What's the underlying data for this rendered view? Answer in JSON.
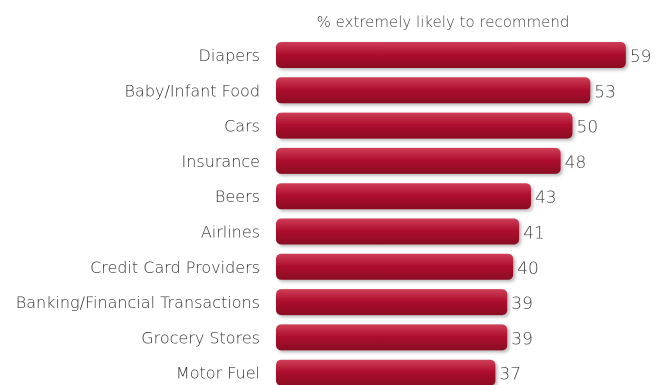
{
  "chart_data": {
    "type": "bar",
    "orientation": "horizontal",
    "subtitle": "% extremely likely to recommend",
    "categories": [
      "Diapers",
      "Baby/Infant Food",
      "Cars",
      "Insurance",
      "Beers",
      "Airlines",
      "Credit Card Providers",
      "Banking/Financial Transactions",
      "Grocery Stores",
      "Motor Fuel"
    ],
    "values": [
      59,
      53,
      50,
      48,
      43,
      41,
      40,
      39,
      39,
      37
    ],
    "bar_color": "#b0102f",
    "bar_color_light": "#cf3f58",
    "bar_color_dark": "#8a0a23",
    "grid": false,
    "legend": "none"
  }
}
